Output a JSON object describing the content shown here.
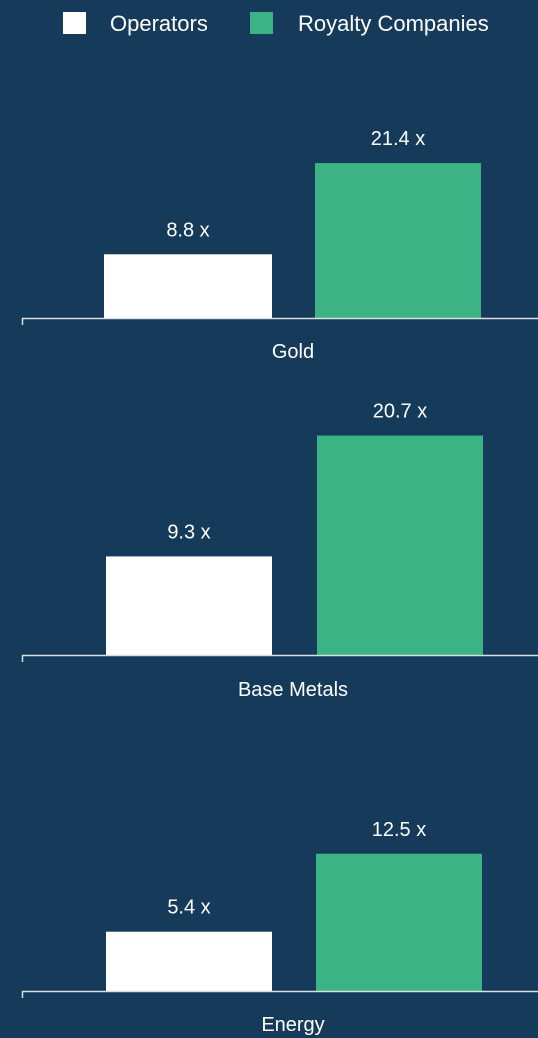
{
  "colors": {
    "background": "#163b5a",
    "operators": "#ffffff",
    "royalty": "#3bb385",
    "axis": "#d9dee3"
  },
  "legend": {
    "operators_label": "Operators",
    "royalty_label": "Royalty Companies"
  },
  "chart_data": [
    {
      "type": "bar",
      "categories": [
        "Gold"
      ],
      "series": [
        {
          "name": "Operators",
          "values": [
            8.8
          ],
          "labels": [
            "8.8 x"
          ]
        },
        {
          "name": "Royalty Companies",
          "values": [
            21.4
          ],
          "labels": [
            "21.4 x"
          ]
        }
      ],
      "legend": "top-right",
      "grid": false
    },
    {
      "type": "bar",
      "categories": [
        "Base Metals"
      ],
      "series": [
        {
          "name": "Operators",
          "values": [
            9.3
          ],
          "labels": [
            "9.3 x"
          ]
        },
        {
          "name": "Royalty Companies",
          "values": [
            20.7
          ],
          "labels": [
            "20.7 x"
          ]
        }
      ],
      "grid": false
    },
    {
      "type": "bar",
      "categories": [
        "Energy"
      ],
      "series": [
        {
          "name": "Operators",
          "values": [
            5.4
          ],
          "labels": [
            "5.4 x"
          ]
        },
        {
          "name": "Royalty Companies",
          "values": [
            12.5
          ],
          "labels": [
            "12.5 x"
          ]
        }
      ],
      "grid": false
    }
  ]
}
